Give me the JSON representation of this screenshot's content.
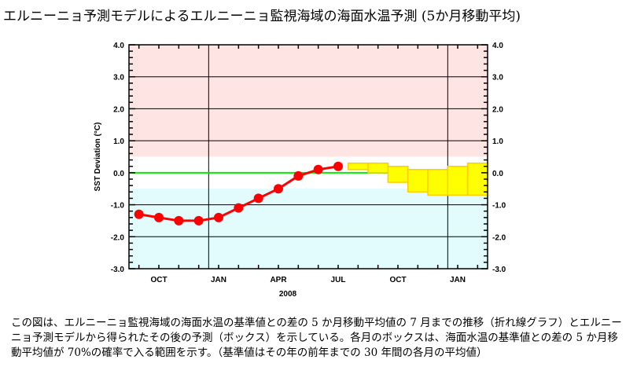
{
  "title": "エルニーニョ予測モデルによるエルニーニョ監視海域の海面水温予測 (5か月移動平均)",
  "caption": "この図は、エルニーニョ監視海域の海面水温の基準値との差の 5 か月移動平均値の 7 月までの推移（折れ線グラフ）とエルニーニョ予測モデルから得られたその後の予測（ボックス）を示している。各月のボックスは、海面水温の基準値との差の 5 か月移動平均値が 70%の確率で入る範囲を示す。（基準値はその年の前年までの 30 年間の各月の平均値）",
  "chart_data": {
    "type": "line",
    "title": "",
    "xlabel": "2008",
    "ylabel": "SST Deviation (°C)",
    "ylim": [
      -3.0,
      4.0
    ],
    "yticks": [
      "4.0",
      "3.0",
      "2.0",
      "1.0",
      "0.0",
      "-1.0",
      "-2.0",
      "-3.0"
    ],
    "xtick_labels": [
      "OCT",
      "JAN",
      "APR",
      "JUL",
      "OCT",
      "JAN"
    ],
    "months": [
      "2007-09",
      "2007-10",
      "2007-11",
      "2007-12",
      "2008-01",
      "2008-02",
      "2008-03",
      "2008-04",
      "2008-05",
      "2008-06",
      "2008-07",
      "2008-08",
      "2008-09",
      "2008-10",
      "2008-11",
      "2008-12",
      "2009-01",
      "2009-02"
    ],
    "observed": {
      "months": [
        "2007-09",
        "2007-10",
        "2007-11",
        "2007-12",
        "2008-01",
        "2008-02",
        "2008-03",
        "2008-04",
        "2008-05",
        "2008-06",
        "2008-07"
      ],
      "values": [
        -1.3,
        -1.4,
        -1.5,
        -1.5,
        -1.4,
        -1.1,
        -0.8,
        -0.5,
        -0.1,
        0.1,
        0.2
      ]
    },
    "forecast_boxes": {
      "months": [
        "2008-08",
        "2008-09",
        "2008-10",
        "2008-11",
        "2008-12",
        "2009-01",
        "2009-02"
      ],
      "low": [
        0.1,
        0.0,
        -0.3,
        -0.6,
        -0.7,
        -0.7,
        -0.7
      ],
      "high": [
        0.3,
        0.3,
        0.2,
        0.1,
        0.1,
        0.2,
        0.3
      ]
    },
    "shading": {
      "el_nino_above": 0.5,
      "la_nina_below": -0.5
    },
    "colors": {
      "el_nino": "#ffe4e4",
      "la_nina": "#e2fcfd",
      "line": "#ff0000",
      "box_fill": "#ffff00",
      "box_edge": "#ffcc00",
      "zero": "#00ee00"
    },
    "grid": true
  }
}
